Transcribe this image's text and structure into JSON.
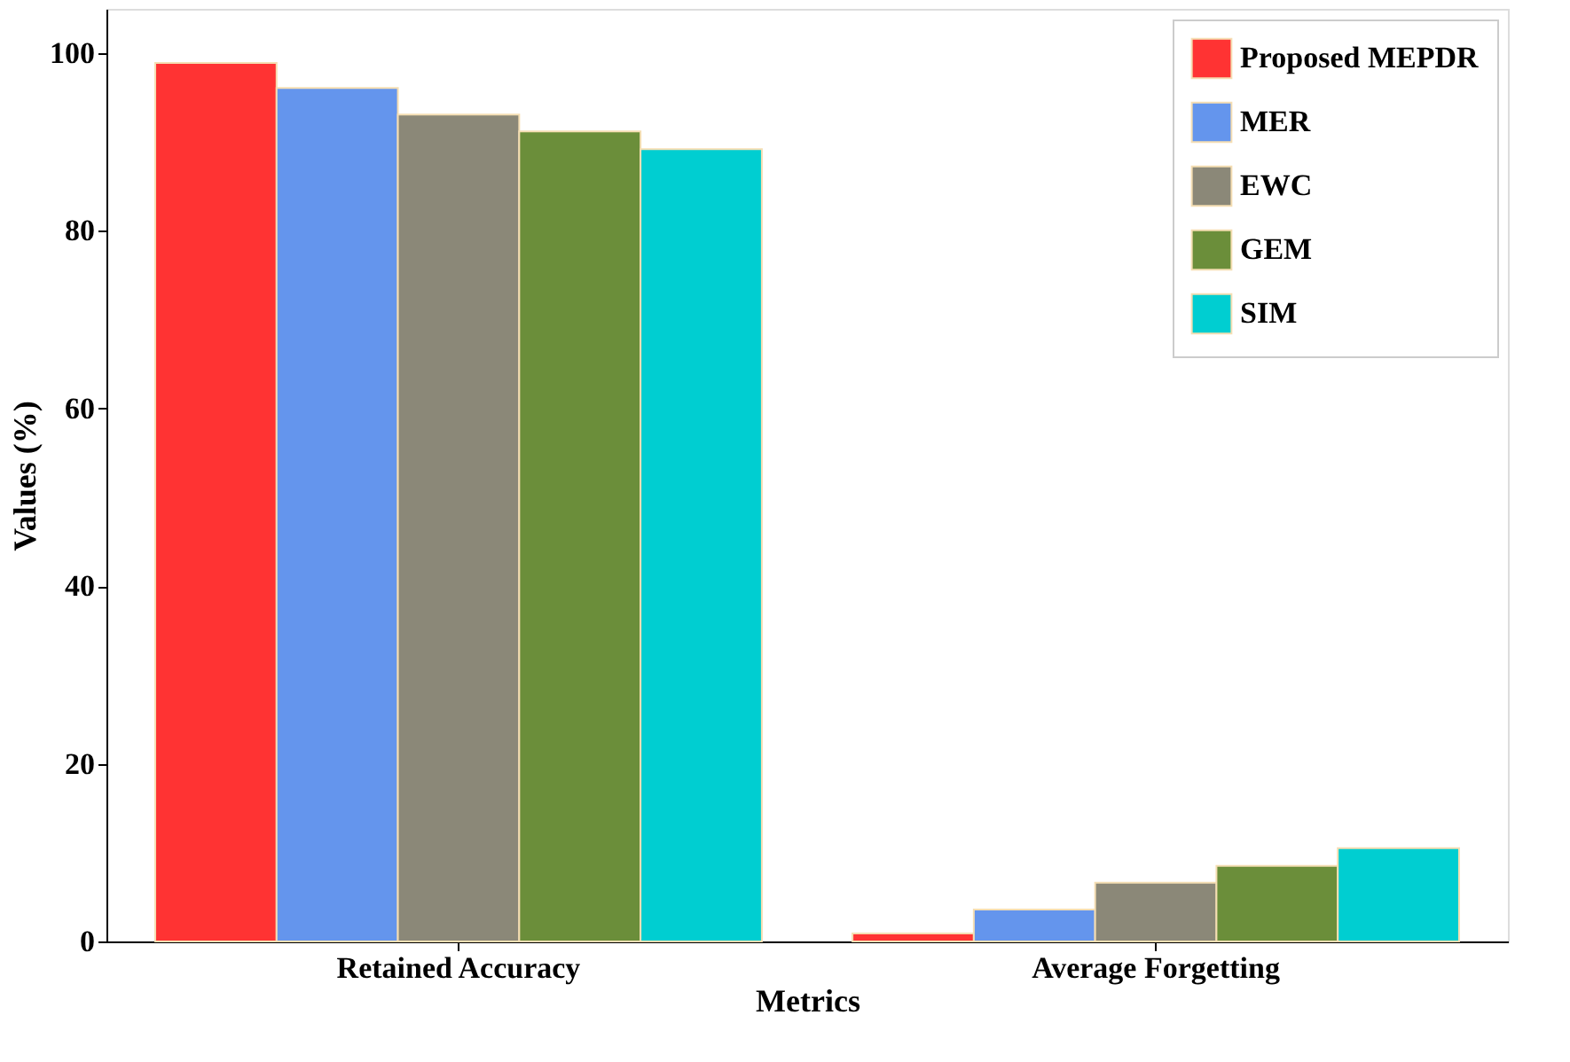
{
  "chart_data": {
    "type": "bar",
    "xlabel": "Metrics",
    "ylabel": "Values (%)",
    "categories": [
      "Retained Accuracy",
      "Average Forgetting"
    ],
    "series": [
      {
        "name": "Proposed MEPDR",
        "color": "#ff3333",
        "values": [
          98.9,
          0.9
        ]
      },
      {
        "name": "MER",
        "color": "#6495ed",
        "values": [
          96.1,
          3.6
        ]
      },
      {
        "name": "EWC",
        "color": "#8b8878",
        "values": [
          93.1,
          6.6
        ]
      },
      {
        "name": "GEM",
        "color": "#6b8e3a",
        "values": [
          91.2,
          8.5
        ]
      },
      {
        "name": "SIM",
        "color": "#00ced1",
        "values": [
          89.2,
          10.5
        ]
      }
    ],
    "ylim": [
      0,
      105
    ],
    "yticks": [
      0,
      20,
      40,
      60,
      80,
      100
    ],
    "grid": false,
    "legend": "top right"
  }
}
